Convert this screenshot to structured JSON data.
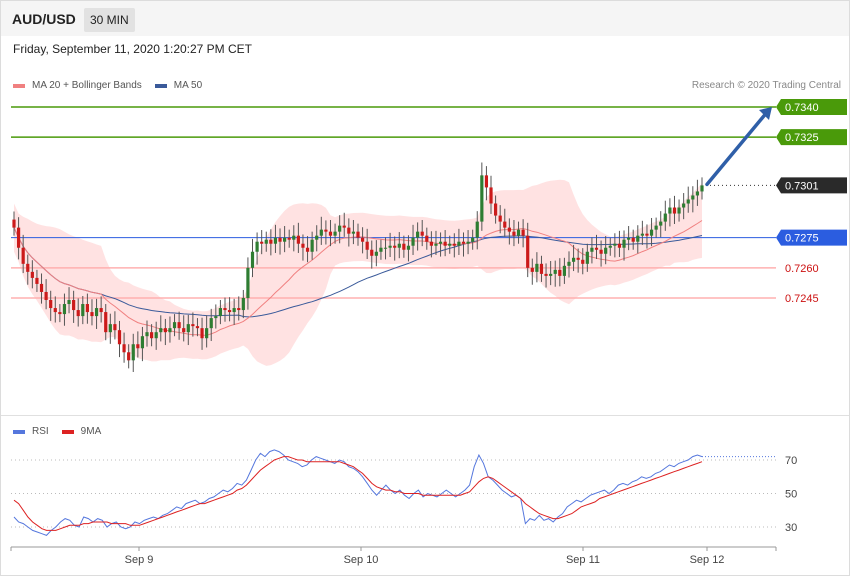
{
  "header": {
    "symbol": "AUD/USD",
    "timeframe": "30 MIN"
  },
  "datetime": "Friday, September 11, 2020 1:20:27 PM CET",
  "legend": {
    "items": [
      {
        "label": "MA 20 + Bollinger Bands",
        "color": "#f08080"
      },
      {
        "label": "MA 50",
        "color": "#3a5a9a"
      }
    ],
    "copyright": "Research © 2020 Trading Central"
  },
  "rsi_legend": {
    "items": [
      {
        "label": "RSI",
        "color": "#5577dd"
      },
      {
        "label": "9MA",
        "color": "#dd2222"
      }
    ]
  },
  "colors": {
    "green_level": "#4a9a0a",
    "blue_level": "#2b5de0",
    "red_level": "#ffb0b0",
    "red_text": "#cc1111",
    "price_tag": "#2a2a2a",
    "bull": "#2e7d32",
    "bear": "#cc1a1a",
    "band": "#ffe0e0",
    "ma20": "#f08080",
    "ma50": "#3a5a9a",
    "rsi": "#5577dd",
    "rsi_ma": "#dd2222",
    "arrow": "#2f5fa8"
  },
  "chart_data": [
    {
      "type": "candlestick",
      "symbol": "AUD/USD",
      "timeframe": "30 MIN",
      "x_ticks": [
        "Sep 9",
        "Sep 10",
        "Sep 11",
        "Sep 12"
      ],
      "y_range": [
        0.7205,
        0.735
      ],
      "levels": [
        {
          "label": "0.7340",
          "value": 0.734,
          "kind": "resistance",
          "color": "green"
        },
        {
          "label": "0.7325",
          "value": 0.7325,
          "kind": "resistance",
          "color": "green"
        },
        {
          "label": "0.7301",
          "value": 0.7301,
          "kind": "current",
          "color": "dark"
        },
        {
          "label": "0.7275",
          "value": 0.7275,
          "kind": "pivot",
          "color": "blue"
        },
        {
          "label": "0.7260",
          "value": 0.726,
          "kind": "support",
          "color": "red"
        },
        {
          "label": "0.7245",
          "value": 0.7245,
          "kind": "support",
          "color": "red"
        }
      ],
      "series": [
        {
          "name": "MA 20 + Bollinger Bands"
        },
        {
          "name": "MA 50"
        }
      ],
      "close_path": [
        0.728,
        0.727,
        0.7262,
        0.7258,
        0.7255,
        0.7252,
        0.7248,
        0.7244,
        0.724,
        0.7238,
        0.7237,
        0.7242,
        0.7244,
        0.7239,
        0.7236,
        0.7242,
        0.7238,
        0.7236,
        0.724,
        0.7238,
        0.7228,
        0.7232,
        0.7229,
        0.7222,
        0.7218,
        0.7214,
        0.7222,
        0.722,
        0.7226,
        0.7228,
        0.7225,
        0.7228,
        0.723,
        0.7228,
        0.723,
        0.7233,
        0.723,
        0.7228,
        0.7232,
        0.7231,
        0.723,
        0.7225,
        0.723,
        0.7235,
        0.7236,
        0.724,
        0.7239,
        0.7238,
        0.724,
        0.7239,
        0.7245,
        0.726,
        0.7268,
        0.7273,
        0.7272,
        0.7274,
        0.7272,
        0.7275,
        0.7273,
        0.7275,
        0.7274,
        0.7276,
        0.7272,
        0.727,
        0.7268,
        0.7274,
        0.7276,
        0.7279,
        0.7278,
        0.7276,
        0.7278,
        0.7281,
        0.728,
        0.7277,
        0.7278,
        0.7275,
        0.7273,
        0.7269,
        0.7266,
        0.7268,
        0.727,
        0.727,
        0.7271,
        0.727,
        0.7272,
        0.7269,
        0.7271,
        0.7275,
        0.7278,
        0.7276,
        0.7273,
        0.7271,
        0.7272,
        0.7273,
        0.7271,
        0.7272,
        0.7271,
        0.7273,
        0.7272,
        0.7273,
        0.7275,
        0.7283,
        0.7306,
        0.73,
        0.7292,
        0.7286,
        0.7283,
        0.728,
        0.7278,
        0.7276,
        0.7279,
        0.7276,
        0.726,
        0.7258,
        0.7262,
        0.7257,
        0.7256,
        0.7257,
        0.7259,
        0.7256,
        0.7261,
        0.7263,
        0.7265,
        0.7264,
        0.7262,
        0.7268,
        0.727,
        0.7269,
        0.7267,
        0.727,
        0.7271,
        0.7272,
        0.727,
        0.7274,
        0.7275,
        0.7273,
        0.7276,
        0.7277,
        0.7276,
        0.7279,
        0.7281,
        0.7283,
        0.7287,
        0.729,
        0.7287,
        0.729,
        0.7292,
        0.7294,
        0.7296,
        0.7298,
        0.7301
      ]
    },
    {
      "type": "line",
      "name": "RSI",
      "y_ticks": [
        30,
        50,
        70
      ],
      "series": [
        {
          "name": "RSI",
          "values": [
            36,
            33,
            32,
            30,
            28,
            27,
            26,
            25,
            28,
            30,
            33,
            35,
            34,
            31,
            30,
            36,
            35,
            33,
            35,
            34,
            30,
            32,
            33,
            30,
            29,
            30,
            33,
            32,
            34,
            35,
            36,
            35,
            37,
            38,
            40,
            42,
            41,
            44,
            45,
            46,
            44,
            45,
            47,
            48,
            50,
            52,
            51,
            53,
            56,
            55,
            58,
            64,
            70,
            74,
            72,
            75,
            76,
            75,
            73,
            70,
            69,
            68,
            66,
            67,
            70,
            72,
            71,
            70,
            69,
            68,
            70,
            69,
            66,
            65,
            63,
            60,
            56,
            52,
            49,
            52,
            55,
            52,
            50,
            52,
            49,
            47,
            50,
            52,
            48,
            50,
            49,
            48,
            50,
            52,
            50,
            48,
            50,
            52,
            55,
            66,
            73,
            68,
            60,
            58,
            55,
            52,
            50,
            48,
            49,
            47,
            32,
            35,
            34,
            37,
            34,
            35,
            33,
            36,
            38,
            42,
            44,
            46,
            45,
            47,
            49,
            50,
            51,
            52,
            50,
            52,
            55,
            56,
            55,
            57,
            58,
            60,
            59,
            60,
            62,
            63,
            65,
            67,
            66,
            68,
            69,
            70,
            72,
            73,
            72
          ]
        },
        {
          "name": "9MA",
          "values": [
            46,
            44,
            40,
            36,
            33,
            31,
            29,
            28,
            28,
            28,
            29,
            30,
            31,
            31,
            31,
            32,
            32,
            33,
            33,
            33,
            33,
            32,
            32,
            32,
            32,
            31,
            31,
            31,
            32,
            33,
            34,
            35,
            36,
            37,
            38,
            39,
            40,
            41,
            42,
            43,
            44,
            44,
            45,
            46,
            47,
            48,
            49,
            50,
            52,
            53,
            55,
            58,
            61,
            64,
            66,
            68,
            70,
            71,
            72,
            72,
            71,
            70,
            70,
            69,
            69,
            69,
            69,
            69,
            69,
            69,
            69,
            68,
            67,
            66,
            64,
            62,
            59,
            56,
            54,
            53,
            52,
            52,
            51,
            51,
            50,
            50,
            50,
            50,
            49,
            49,
            49,
            49,
            49,
            49,
            49,
            49,
            49,
            50,
            51,
            54,
            57,
            59,
            60,
            59,
            57,
            55,
            53,
            51,
            49,
            47,
            44,
            42,
            40,
            38,
            37,
            36,
            35,
            35,
            36,
            37,
            38,
            40,
            42,
            43,
            44,
            45,
            47,
            48,
            49,
            50,
            51,
            52,
            53,
            54,
            55,
            56,
            57,
            58,
            59,
            60,
            61,
            62,
            63,
            64,
            65,
            66,
            67,
            68,
            69
          ]
        }
      ]
    }
  ]
}
